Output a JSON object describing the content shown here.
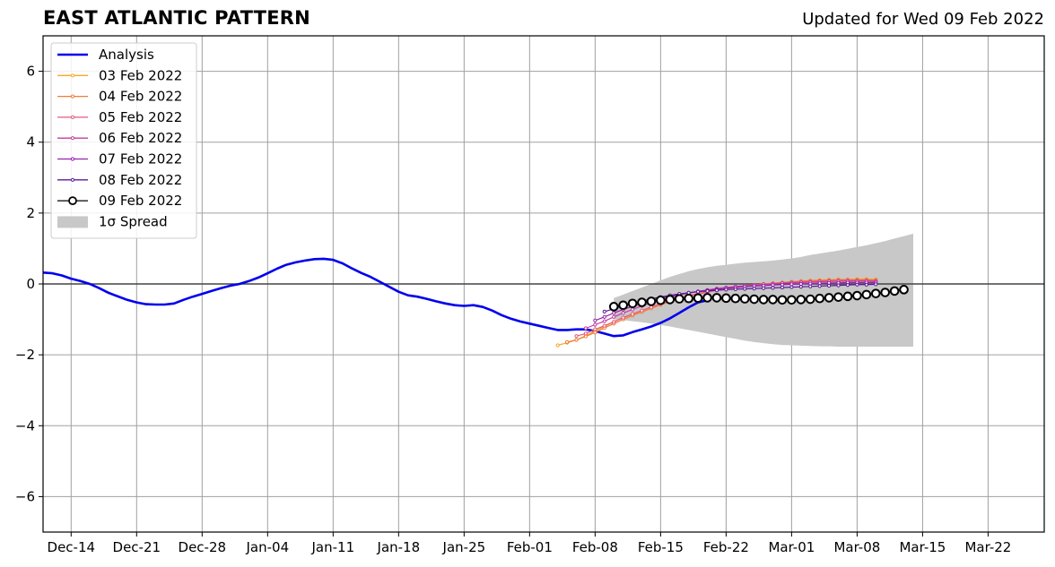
{
  "title": "EAST ATLANTIC PATTERN",
  "subtitle": "Updated for Wed 09 Feb 2022",
  "chart_data": {
    "type": "line",
    "title": "EAST ATLANTIC PATTERN",
    "xlabel": "",
    "ylabel": "",
    "xlim": [
      "2021-12-11",
      "2022-03-28"
    ],
    "ylim": [
      -7,
      7
    ],
    "grid": true,
    "legend_position": "upper-left",
    "x_ticks": [
      "2021-12-14",
      "2021-12-21",
      "2021-12-28",
      "2022-01-04",
      "2022-01-11",
      "2022-01-18",
      "2022-01-25",
      "2022-02-01",
      "2022-02-08",
      "2022-02-15",
      "2022-02-22",
      "2022-03-01",
      "2022-03-08",
      "2022-03-15",
      "2022-03-22"
    ],
    "x_tick_labels": [
      "Dec-14",
      "Dec-21",
      "Dec-28",
      "Jan-04",
      "Jan-11",
      "Jan-18",
      "Jan-25",
      "Feb-01",
      "Feb-08",
      "Feb-15",
      "Feb-22",
      "Mar-01",
      "Mar-08",
      "Mar-15",
      "Mar-22"
    ],
    "y_ticks": [
      -6,
      -4,
      -2,
      0,
      2,
      4,
      6
    ],
    "y_tick_labels": [
      "−6",
      "−4",
      "−2",
      "0",
      "2",
      "4",
      "6"
    ],
    "analysis": {
      "name": "Analysis",
      "color": "#0000ee",
      "start_date": "2021-12-11",
      "values": [
        0.32,
        0.3,
        0.24,
        0.15,
        0.08,
        0.0,
        -0.12,
        -0.25,
        -0.35,
        -0.45,
        -0.52,
        -0.57,
        -0.58,
        -0.58,
        -0.55,
        -0.45,
        -0.36,
        -0.28,
        -0.2,
        -0.12,
        -0.05,
        0.0,
        0.08,
        0.18,
        0.3,
        0.43,
        0.54,
        0.61,
        0.66,
        0.7,
        0.71,
        0.68,
        0.58,
        0.44,
        0.31,
        0.2,
        0.06,
        -0.08,
        -0.22,
        -0.32,
        -0.36,
        -0.42,
        -0.49,
        -0.55,
        -0.6,
        -0.62,
        -0.6,
        -0.65,
        -0.75,
        -0.88,
        -0.98,
        -1.06,
        -1.12,
        -1.18,
        -1.24,
        -1.3,
        -1.3,
        -1.28,
        -1.28,
        -1.33,
        -1.4,
        -1.47,
        -1.45,
        -1.36,
        -1.28,
        -1.2,
        -1.1,
        -0.97,
        -0.82,
        -0.66,
        -0.52,
        -0.46
      ]
    },
    "forecast_series": [
      {
        "name": "03 Feb 2022",
        "color": "#f9a825",
        "start_date": "2022-02-04",
        "values": [
          -1.73,
          -1.66,
          -1.58,
          -1.46,
          -1.33,
          -1.2,
          -1.07,
          -0.95,
          -0.85,
          -0.75,
          -0.66,
          -0.57,
          -0.48,
          -0.41,
          -0.34,
          -0.28,
          -0.23,
          -0.18,
          -0.13,
          -0.09,
          -0.06,
          -0.03,
          0.0,
          0.02,
          0.04,
          0.06,
          0.08,
          0.1,
          0.11,
          0.12,
          0.13,
          0.13,
          0.14,
          0.14,
          0.13
        ]
      },
      {
        "name": "04 Feb 2022",
        "color": "#f07c3c",
        "start_date": "2022-02-05",
        "values": [
          -1.64,
          -1.58,
          -1.48,
          -1.37,
          -1.24,
          -1.12,
          -1.0,
          -0.89,
          -0.79,
          -0.69,
          -0.59,
          -0.5,
          -0.42,
          -0.35,
          -0.29,
          -0.23,
          -0.18,
          -0.14,
          -0.1,
          -0.06,
          -0.03,
          0.0,
          0.02,
          0.04,
          0.06,
          0.08,
          0.09,
          0.1,
          0.11,
          0.12,
          0.12,
          0.12,
          0.12,
          0.11
        ]
      },
      {
        "name": "05 Feb 2022",
        "color": "#e45a79",
        "start_date": "2022-02-06",
        "values": [
          -1.47,
          -1.4,
          -1.28,
          -1.18,
          -1.07,
          -0.95,
          -0.85,
          -0.75,
          -0.65,
          -0.56,
          -0.48,
          -0.4,
          -0.33,
          -0.27,
          -0.22,
          -0.17,
          -0.13,
          -0.09,
          -0.06,
          -0.03,
          -0.01,
          0.01,
          0.03,
          0.05,
          0.06,
          0.07,
          0.08,
          0.09,
          0.1,
          0.1,
          0.1,
          0.1,
          0.09
        ]
      },
      {
        "name": "06 Feb 2022",
        "color": "#c23d9c",
        "start_date": "2022-02-07",
        "values": [
          -1.25,
          -1.15,
          -1.05,
          -0.93,
          -0.82,
          -0.72,
          -0.62,
          -0.53,
          -0.45,
          -0.38,
          -0.31,
          -0.26,
          -0.21,
          -0.17,
          -0.13,
          -0.1,
          -0.07,
          -0.05,
          -0.03,
          -0.01,
          0.0,
          0.02,
          0.03,
          0.04,
          0.05,
          0.06,
          0.07,
          0.07,
          0.08,
          0.08,
          0.08,
          0.07
        ]
      },
      {
        "name": "07 Feb 2022",
        "color": "#9522ae",
        "start_date": "2022-02-08",
        "values": [
          -1.03,
          -0.93,
          -0.82,
          -0.72,
          -0.63,
          -0.55,
          -0.47,
          -0.4,
          -0.34,
          -0.29,
          -0.25,
          -0.21,
          -0.18,
          -0.15,
          -0.12,
          -0.1,
          -0.08,
          -0.06,
          -0.05,
          -0.03,
          -0.02,
          -0.01,
          0.0,
          0.01,
          0.02,
          0.03,
          0.03,
          0.04,
          0.04,
          0.04,
          0.04
        ]
      },
      {
        "name": "08 Feb 2022",
        "color": "#5b1a9a",
        "start_date": "2022-02-09",
        "values": [
          -0.78,
          -0.7,
          -0.62,
          -0.55,
          -0.48,
          -0.42,
          -0.37,
          -0.32,
          -0.28,
          -0.25,
          -0.22,
          -0.2,
          -0.18,
          -0.16,
          -0.15,
          -0.14,
          -0.13,
          -0.12,
          -0.11,
          -0.1,
          -0.09,
          -0.08,
          -0.07,
          -0.06,
          -0.05,
          -0.04,
          -0.03,
          -0.02,
          -0.02,
          -0.01
        ]
      },
      {
        "name": "09 Feb 2022",
        "color": "#000000",
        "marker_fill": "#ffffff",
        "start_date": "2022-02-10",
        "values": [
          -0.64,
          -0.6,
          -0.55,
          -0.52,
          -0.49,
          -0.46,
          -0.44,
          -0.42,
          -0.41,
          -0.4,
          -0.39,
          -0.39,
          -0.4,
          -0.41,
          -0.42,
          -0.43,
          -0.44,
          -0.44,
          -0.45,
          -0.45,
          -0.44,
          -0.43,
          -0.41,
          -0.39,
          -0.37,
          -0.35,
          -0.33,
          -0.3,
          -0.27,
          -0.24,
          -0.2,
          -0.16
        ]
      }
    ],
    "spread": {
      "name": "1σ Spread",
      "color": "#c8c8c8",
      "start_date": "2022-02-10",
      "upper": [
        -0.4,
        -0.3,
        -0.2,
        -0.1,
        0.0,
        0.1,
        0.2,
        0.28,
        0.36,
        0.42,
        0.47,
        0.51,
        0.54,
        0.57,
        0.6,
        0.62,
        0.64,
        0.66,
        0.69,
        0.72,
        0.76,
        0.82,
        0.86,
        0.9,
        0.94,
        0.99,
        1.04,
        1.09,
        1.15,
        1.21,
        1.28,
        1.35,
        1.42
      ],
      "lower": [
        -1.0,
        -1.02,
        -1.05,
        -1.08,
        -1.12,
        -1.16,
        -1.2,
        -1.25,
        -1.3,
        -1.35,
        -1.4,
        -1.45,
        -1.5,
        -1.55,
        -1.6,
        -1.64,
        -1.67,
        -1.7,
        -1.72,
        -1.73,
        -1.74,
        -1.75,
        -1.76,
        -1.76,
        -1.77,
        -1.77,
        -1.77,
        -1.77,
        -1.77,
        -1.77,
        -1.77,
        -1.77,
        -1.77
      ]
    }
  }
}
